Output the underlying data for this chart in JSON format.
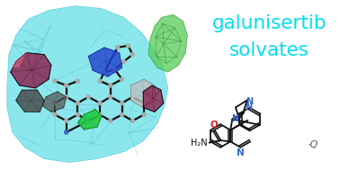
{
  "title_line1": "galunisertib",
  "title_line2": "solvates",
  "title_color": "#00e0f0",
  "title_fontsize": 15.5,
  "background_color": "#ffffff",
  "solvent_label": "·Q",
  "solvent_color": "#555555",
  "fig_width": 3.78,
  "fig_height": 1.89,
  "dpi": 100,
  "cyan_blob_color": "#40d8e0",
  "cyan_blob_alpha": 0.6,
  "green_blob_color": "#55cc55",
  "green_blob_alpha": 0.75,
  "crimson_color": "#8b1a4a",
  "pink_color": "#cc6688",
  "blue_color": "#2244cc",
  "gray_color": "#888888",
  "light_gray_color": "#bbbbbb",
  "dark_color": "#111111",
  "nitrogen_color": "#3366cc",
  "oxygen_color": "#cc2222"
}
